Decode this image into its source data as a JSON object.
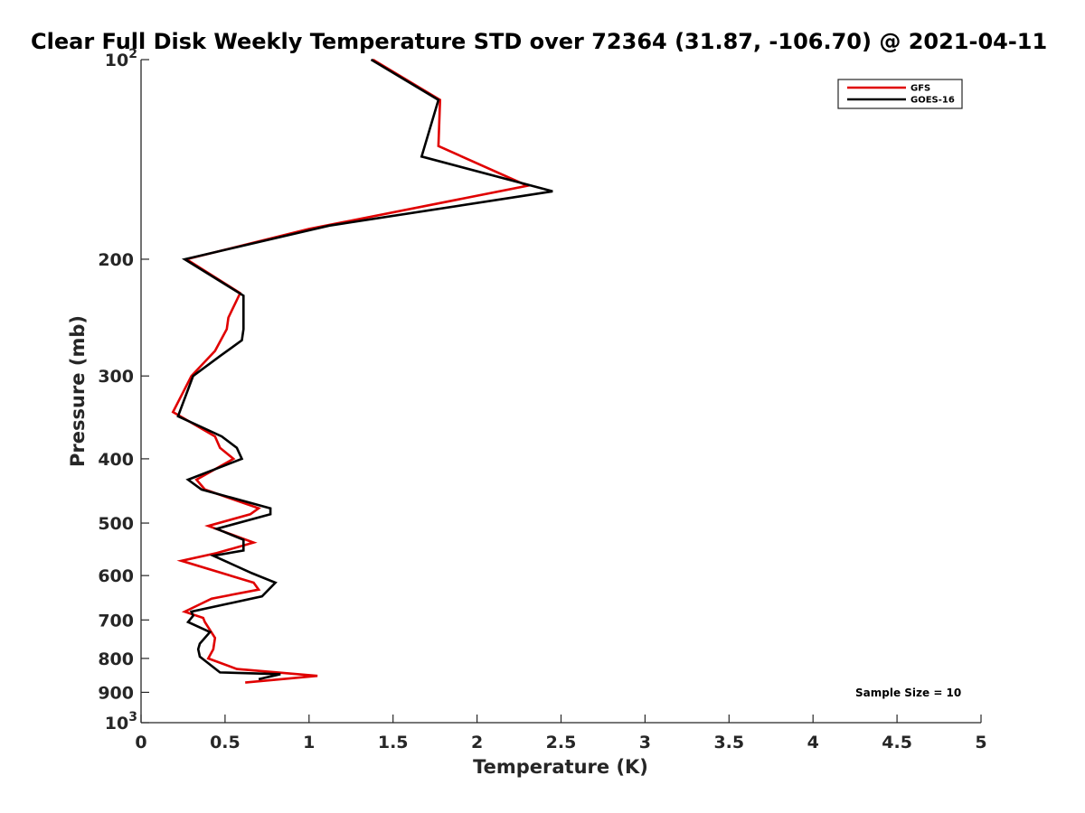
{
  "chart_data": {
    "type": "line",
    "title": "Clear Full Disk Weekly Temperature STD over 72364 (31.87, -106.70) @ 2021-04-11",
    "xlabel": "Temperature (K)",
    "ylabel": "Pressure (mb)",
    "xlim": [
      0,
      5
    ],
    "ylim": [
      100,
      1000
    ],
    "y_scale": "log",
    "y_reversed": true,
    "x_ticks": [
      "0",
      "0.5",
      "1",
      "1.5",
      "2",
      "2.5",
      "3",
      "3.5",
      "4",
      "4.5",
      "5"
    ],
    "y_ticks": [
      {
        "value": 100,
        "base": "10",
        "exp": "2"
      },
      {
        "value": 200,
        "label": "200"
      },
      {
        "value": 300,
        "label": "300"
      },
      {
        "value": 400,
        "label": "400"
      },
      {
        "value": 500,
        "label": "500"
      },
      {
        "value": 600,
        "label": "600"
      },
      {
        "value": 700,
        "label": "700"
      },
      {
        "value": 800,
        "label": "800"
      },
      {
        "value": 900,
        "label": "900"
      },
      {
        "value": 1000,
        "base": "10",
        "exp": "3"
      }
    ],
    "grid": false,
    "legend": "top-right",
    "annotation": "Sample Size = 10",
    "series": [
      {
        "name": "GFS",
        "color": "#e00000",
        "points": [
          [
            1.38,
            100
          ],
          [
            1.78,
            115
          ],
          [
            1.77,
            135
          ],
          [
            2.3,
            155
          ],
          [
            1.0,
            180
          ],
          [
            0.27,
            200
          ],
          [
            0.59,
            225
          ],
          [
            0.52,
            245
          ],
          [
            0.51,
            255
          ],
          [
            0.44,
            275
          ],
          [
            0.3,
            300
          ],
          [
            0.19,
            340
          ],
          [
            0.44,
            370
          ],
          [
            0.47,
            385
          ],
          [
            0.55,
            400
          ],
          [
            0.33,
            430
          ],
          [
            0.38,
            445
          ],
          [
            0.7,
            475
          ],
          [
            0.65,
            485
          ],
          [
            0.4,
            505
          ],
          [
            0.67,
            535
          ],
          [
            0.45,
            555
          ],
          [
            0.24,
            570
          ],
          [
            0.67,
            615
          ],
          [
            0.7,
            630
          ],
          [
            0.42,
            650
          ],
          [
            0.26,
            680
          ],
          [
            0.37,
            695
          ],
          [
            0.38,
            705
          ],
          [
            0.44,
            745
          ],
          [
            0.43,
            775
          ],
          [
            0.4,
            800
          ],
          [
            0.57,
            830
          ],
          [
            1.05,
            850
          ],
          [
            0.62,
            870
          ]
        ]
      },
      {
        "name": "GOES-16",
        "color": "#000000",
        "points": [
          [
            1.37,
            100
          ],
          [
            1.77,
            115
          ],
          [
            1.67,
            140
          ],
          [
            2.45,
            158
          ],
          [
            1.12,
            178
          ],
          [
            0.26,
            200
          ],
          [
            0.61,
            227
          ],
          [
            0.61,
            255
          ],
          [
            0.6,
            265
          ],
          [
            0.47,
            280
          ],
          [
            0.31,
            300
          ],
          [
            0.22,
            345
          ],
          [
            0.48,
            370
          ],
          [
            0.57,
            385
          ],
          [
            0.6,
            400
          ],
          [
            0.28,
            430
          ],
          [
            0.36,
            445
          ],
          [
            0.77,
            475
          ],
          [
            0.77,
            485
          ],
          [
            0.45,
            510
          ],
          [
            0.61,
            530
          ],
          [
            0.61,
            550
          ],
          [
            0.43,
            560
          ],
          [
            0.66,
            595
          ],
          [
            0.8,
            615
          ],
          [
            0.72,
            645
          ],
          [
            0.3,
            680
          ],
          [
            0.31,
            690
          ],
          [
            0.28,
            705
          ],
          [
            0.41,
            730
          ],
          [
            0.35,
            760
          ],
          [
            0.34,
            775
          ],
          [
            0.35,
            795
          ],
          [
            0.47,
            840
          ],
          [
            0.83,
            845
          ],
          [
            0.7,
            860
          ]
        ]
      }
    ]
  }
}
